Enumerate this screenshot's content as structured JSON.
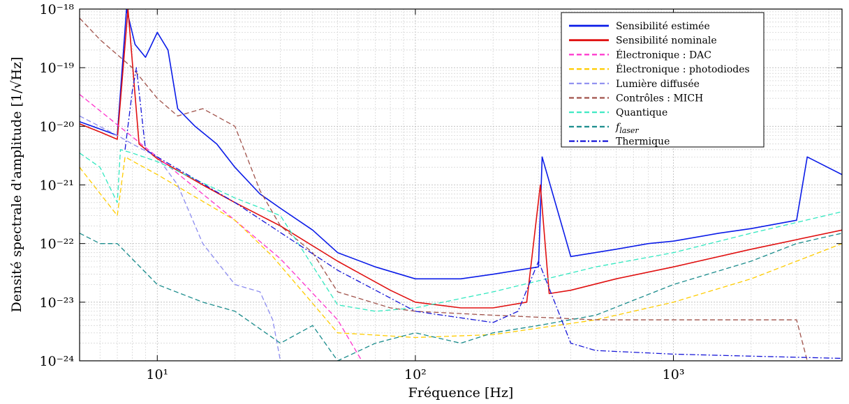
{
  "chart_data": {
    "type": "line",
    "xlabel": "Fréquence [Hz]",
    "ylabel": "Densité spectrale d'amplitude [1/√Hz]",
    "xscale": "log",
    "yscale": "log",
    "xlim": [
      5,
      4500
    ],
    "ylim": [
      1e-24,
      1e-18
    ],
    "grid": true,
    "legend_position": "top-right",
    "x_ticks": [
      {
        "value": 10,
        "label": "10¹"
      },
      {
        "value": 100,
        "label": "10²"
      },
      {
        "value": 1000,
        "label": "10³"
      }
    ],
    "y_ticks": [
      {
        "value": 1e-18,
        "label": "10⁻¹⁸"
      },
      {
        "value": 1e-19,
        "label": "10⁻¹⁹"
      },
      {
        "value": 1e-20,
        "label": "10⁻²⁰"
      },
      {
        "value": 1e-21,
        "label": "10⁻²¹"
      },
      {
        "value": 1e-22,
        "label": "10⁻²²"
      },
      {
        "value": 1e-23,
        "label": "10⁻²³"
      },
      {
        "value": 1e-24,
        "label": "10⁻²⁴"
      }
    ],
    "series": [
      {
        "name": "Sensibilité estimée",
        "color": "#0a1be8",
        "style": "solid",
        "x": [
          5,
          6,
          7,
          7.6,
          8.2,
          9,
          10,
          11,
          12,
          14,
          17,
          20,
          25,
          30,
          40,
          50,
          70,
          100,
          150,
          200,
          300,
          310,
          400,
          600,
          800,
          1000,
          1500,
          2000,
          3000,
          3300,
          4500
        ],
        "y": [
          1.2e-20,
          9e-21,
          7e-21,
          1e-18,
          2.5e-19,
          1.5e-19,
          4e-19,
          2e-19,
          2e-20,
          1e-20,
          5e-21,
          2e-21,
          7e-22,
          4e-22,
          1.7e-22,
          7e-23,
          4e-23,
          2.5e-23,
          2.5e-23,
          3e-23,
          4e-23,
          3e-21,
          6e-23,
          8e-23,
          1e-22,
          1.1e-22,
          1.5e-22,
          1.8e-22,
          2.5e-22,
          3e-21,
          1.5e-21
        ]
      },
      {
        "name": "Sensibilité nominale",
        "color": "#e01010",
        "style": "solid",
        "x": [
          5,
          6,
          7,
          7.7,
          8.5,
          10,
          15,
          20,
          30,
          50,
          80,
          100,
          150,
          200,
          270,
          305,
          330,
          400,
          600,
          1000,
          2000,
          4500
        ],
        "y": [
          1.1e-20,
          8e-21,
          6e-21,
          1e-18,
          5e-21,
          2.8e-21,
          1e-21,
          5e-22,
          2e-22,
          5e-23,
          1.6e-23,
          1e-23,
          8e-24,
          8e-24,
          1e-23,
          1e-21,
          1.4e-23,
          1.6e-23,
          2.5e-23,
          4e-23,
          8e-23,
          1.7e-22
        ]
      },
      {
        "name": "Électronique : DAC",
        "color": "#ff33cc",
        "style": "dashed",
        "x": [
          5,
          10,
          20,
          30,
          50,
          62
        ],
        "y": [
          3.5e-20,
          3e-21,
          2.5e-22,
          5.5e-23,
          5e-24,
          1e-24
        ]
      },
      {
        "name": "Électronique : photodiodes",
        "color": "#ffcc00",
        "style": "dashed",
        "x": [
          5,
          7,
          7.5,
          10,
          20,
          28,
          50,
          100,
          200,
          500,
          1000,
          2000,
          4500
        ],
        "y": [
          2e-21,
          3e-22,
          3e-21,
          1.5e-21,
          2.5e-22,
          6e-23,
          3e-24,
          2.5e-24,
          2.8e-24,
          5e-24,
          1e-23,
          2.5e-23,
          1e-22
        ]
      },
      {
        "name": "Lumière diffusée",
        "color": "#8c8cf0",
        "style": "dashed",
        "x": [
          5,
          7,
          8,
          10,
          12,
          15,
          20,
          25,
          28,
          30
        ],
        "y": [
          1.5e-20,
          7e-21,
          5e-21,
          3e-21,
          1e-21,
          1e-22,
          2e-23,
          1.5e-23,
          5e-24,
          1e-24
        ]
      },
      {
        "name": "Contrôles : MICH",
        "color": "#a0524a",
        "style": "dashed",
        "x": [
          5,
          6,
          8,
          10,
          12,
          15,
          20,
          25,
          30,
          40,
          50,
          80,
          100,
          200,
          500,
          1000,
          2000,
          3000,
          3300
        ],
        "y": [
          7e-19,
          3e-19,
          1e-19,
          3e-20,
          1.5e-20,
          2e-20,
          1e-20,
          8e-22,
          2e-22,
          7e-23,
          1.5e-23,
          8e-24,
          7e-24,
          6e-24,
          5e-24,
          5e-24,
          5e-24,
          5e-24,
          1e-24
        ]
      },
      {
        "name": "Quantique",
        "color": "#33e8c0",
        "style": "dashed",
        "x": [
          5,
          6,
          7,
          7.2,
          8,
          10,
          20,
          30,
          50,
          70,
          100,
          200,
          500,
          1000,
          2000,
          4500
        ],
        "y": [
          3.5e-21,
          2e-21,
          5e-22,
          4e-21,
          3.5e-21,
          2.5e-21,
          6e-22,
          3e-22,
          9e-24,
          7e-24,
          8e-24,
          1.5e-23,
          4e-23,
          7e-23,
          1.5e-22,
          3.5e-22
        ]
      },
      {
        "name": "f_laser",
        "color": "#1a8c8c",
        "style": "dashed",
        "x": [
          5,
          6,
          7,
          10,
          15,
          20,
          30,
          40,
          50,
          70,
          100,
          150,
          200,
          300,
          500,
          1000,
          2000,
          3000,
          4500
        ],
        "y": [
          1.5e-22,
          1e-22,
          1e-22,
          2e-23,
          1e-23,
          7e-24,
          2e-24,
          4e-24,
          1e-24,
          2e-24,
          3e-24,
          2e-24,
          3e-24,
          4e-24,
          6e-24,
          2e-23,
          5e-23,
          1e-22,
          1.5e-22
        ]
      },
      {
        "name": "Thermique",
        "color": "#1515d8",
        "style": "dashdot",
        "x": [
          7.5,
          8,
          8.3,
          9,
          10,
          20,
          50,
          100,
          200,
          250,
          300,
          400,
          500,
          1000,
          2000,
          4500
        ],
        "y": [
          4e-21,
          4e-20,
          1e-19,
          4e-21,
          3e-21,
          5e-22,
          3.5e-23,
          7e-24,
          4.5e-24,
          7e-24,
          5e-23,
          2e-24,
          1.5e-24,
          1.3e-24,
          1.2e-24,
          1.1e-24
        ]
      }
    ]
  }
}
